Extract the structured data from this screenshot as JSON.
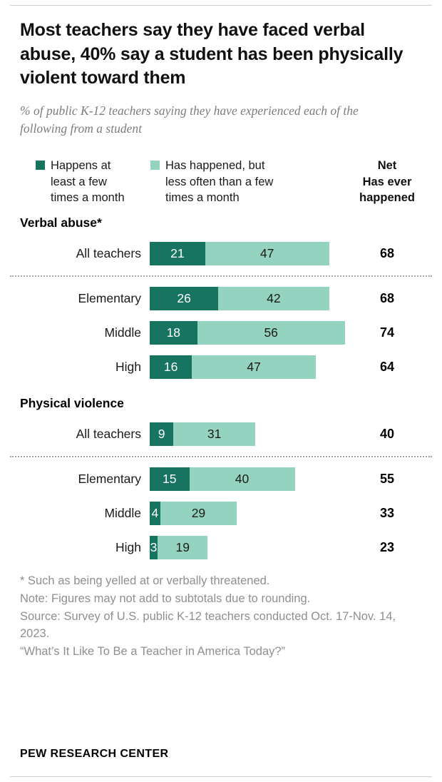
{
  "title": "Most teachers say they have faced verbal abuse, 40% say a student has been physically violent toward them",
  "subtitle": "% of public K-12 teachers saying they have experienced each of the following from a student",
  "legend": [
    {
      "label": "Happens at least a few times a month",
      "color": "#177461"
    },
    {
      "label": "Has happened, but less often than a few times a month",
      "color": "#94d3bf"
    }
  ],
  "net_header": [
    "Net",
    "Has ever happened"
  ],
  "chart_data": {
    "type": "bar",
    "orientation": "horizontal",
    "stacked": true,
    "series_names": [
      "Happens at least a few times a month",
      "Has happened, but less often than a few times a month"
    ],
    "xlim": [
      0,
      77
    ],
    "grid": false,
    "legend_position": "top",
    "groups": [
      {
        "label": "Verbal abuse*",
        "rows": [
          {
            "category": "All teachers",
            "values": [
              21,
              47
            ],
            "net": 68,
            "divider_after": true
          },
          {
            "category": "Elementary",
            "values": [
              26,
              42
            ],
            "net": 68,
            "divider_after": false
          },
          {
            "category": "Middle",
            "values": [
              18,
              56
            ],
            "net": 74,
            "divider_after": false
          },
          {
            "category": "High",
            "values": [
              16,
              47
            ],
            "net": 64,
            "divider_after": false
          }
        ]
      },
      {
        "label": "Physical violence",
        "rows": [
          {
            "category": "All teachers",
            "values": [
              9,
              31
            ],
            "net": 40,
            "divider_after": true
          },
          {
            "category": "Elementary",
            "values": [
              15,
              40
            ],
            "net": 55,
            "divider_after": false
          },
          {
            "category": "Middle",
            "values": [
              4,
              29
            ],
            "net": 33,
            "divider_after": false
          },
          {
            "category": "High",
            "values": [
              3,
              19
            ],
            "net": 23,
            "divider_after": false
          }
        ]
      }
    ]
  },
  "footnotes": [
    "* Such as being yelled at or verbally threatened.",
    "Note: Figures may not add to subtotals due to rounding.",
    "Source: Survey of U.S. public K-12 teachers conducted Oct. 17-Nov. 14, 2023.",
    "“What’s It Like To Be a Teacher in America Today?”"
  ],
  "footer": "PEW RESEARCH CENTER"
}
